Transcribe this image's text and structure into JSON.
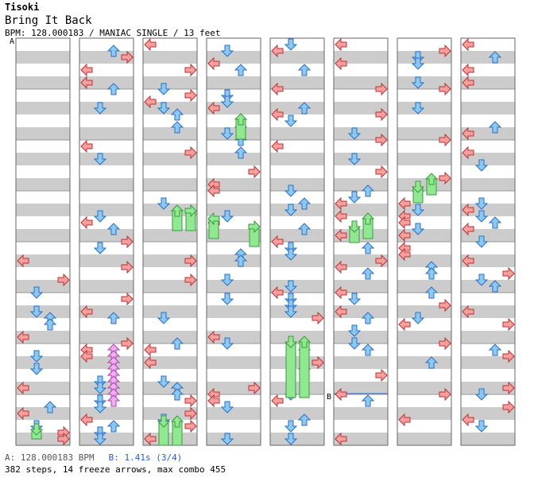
{
  "header": {
    "artist": "Tisoki",
    "song_title": "Bring It Back",
    "chart_info": "BPM: 128.000183 / MANIAC SINGLE / 13 feet"
  },
  "markers": {
    "a": "A",
    "b": "B"
  },
  "footer": {
    "bpm_a": "A: 128.000183 BPM",
    "bpm_b": "B: 1.41s (3/4)",
    "stats": "382 steps, 14 freeze arrows, max combo 455"
  },
  "colors": {
    "left_arrow": "#f4a0a0",
    "down_arrow": "#8cc8f4",
    "up_arrow": "#8cc8f4",
    "right_arrow": "#f4a0a0",
    "freeze": "#90e890",
    "shock": "#f0b0f0",
    "stripe": "#cccccc",
    "b_line": "#4a7bd8"
  }
}
